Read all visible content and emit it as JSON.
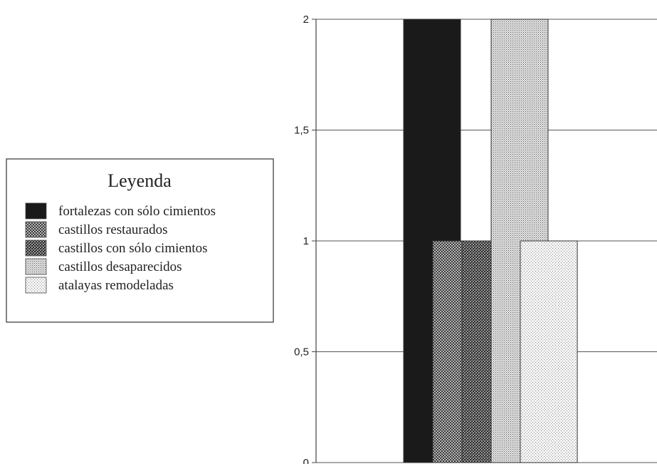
{
  "chart_data": {
    "type": "bar",
    "title": "",
    "xlabel": "",
    "ylabel": "",
    "ylim": [
      0,
      2
    ],
    "yticks": [
      {
        "value": 0,
        "label": "0"
      },
      {
        "value": 0.5,
        "label": "0,5"
      },
      {
        "value": 1,
        "label": "1"
      },
      {
        "value": 1.5,
        "label": "1,5"
      },
      {
        "value": 2,
        "label": "2"
      }
    ],
    "grid": true,
    "legend_position": "left",
    "legend_title": "Leyenda",
    "categories": [
      ""
    ],
    "series": [
      {
        "name": "fortalezas con sólo cimientos",
        "values": [
          2
        ],
        "pattern": "solid-black"
      },
      {
        "name": "castillos restaurados",
        "values": [
          1
        ],
        "pattern": "dense-checker"
      },
      {
        "name": "castillos con sólo cimientos",
        "values": [
          1
        ],
        "pattern": "dark-checker"
      },
      {
        "name": "castillos desaparecidos",
        "values": [
          2
        ],
        "pattern": "medium-dots"
      },
      {
        "name": "atalayas remodeladas",
        "values": [
          1
        ],
        "pattern": "light-dots"
      }
    ]
  }
}
